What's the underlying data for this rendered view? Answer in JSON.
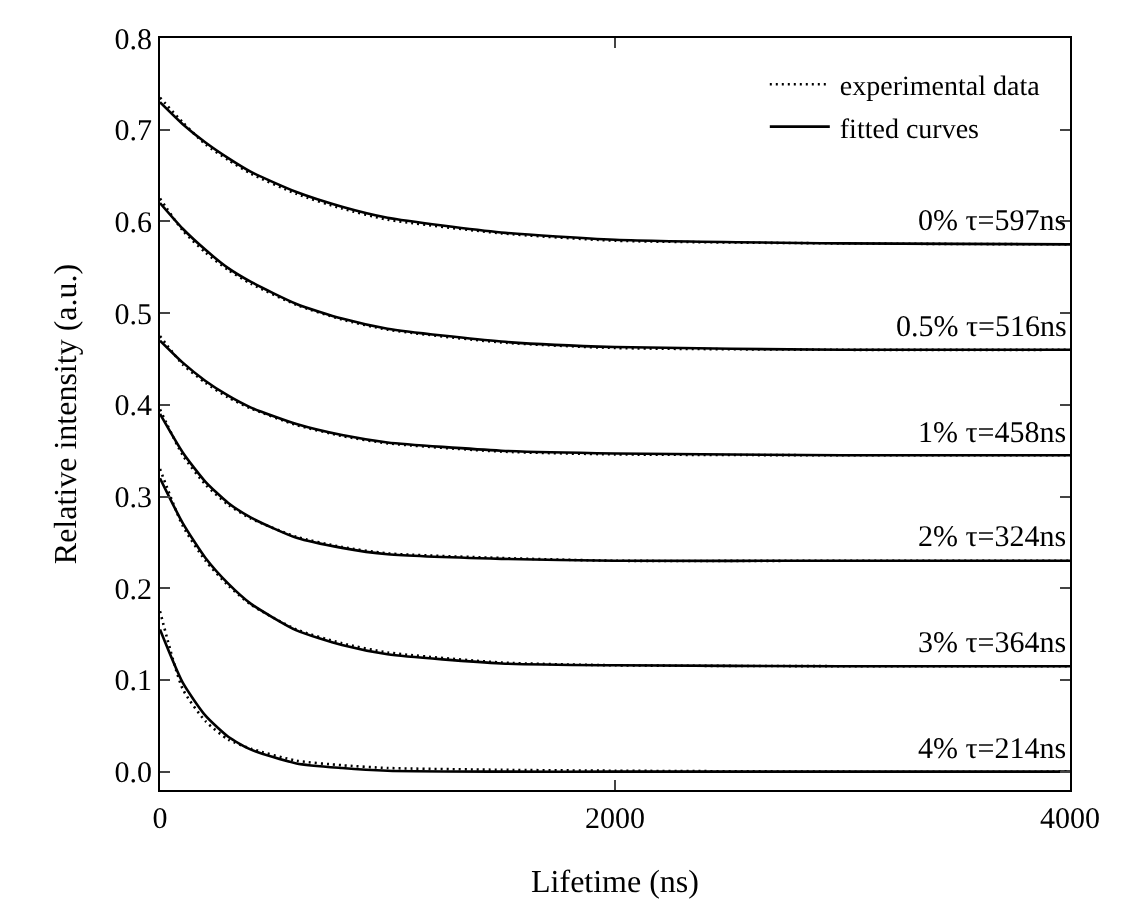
{
  "chart_data": {
    "type": "line",
    "xlabel": "Lifetime (ns)",
    "ylabel": "Relative intensity (a.u.)",
    "x": [
      0,
      100,
      200,
      300,
      400,
      600,
      800,
      1000,
      1500,
      2000,
      3000,
      4000
    ],
    "xlim": [
      0,
      4000
    ],
    "xticks": [
      0,
      2000,
      4000
    ],
    "ylim": [
      -0.02,
      0.8
    ],
    "yticks": [
      {
        "value": 0,
        "label": "0.0"
      },
      0.1,
      0.2,
      0.3,
      0.4,
      0.5,
      0.6,
      0.7,
      0.8
    ],
    "grid": false,
    "legend": "top right",
    "marker": "none",
    "series": [
      {
        "name": "experimental data",
        "color": "#000000",
        "line_style": "dotted",
        "values": [
          0.735,
          0.708,
          0.684,
          0.667,
          0.652,
          0.63,
          0.614,
          0.602,
          0.587,
          0.579,
          0.576,
          0.575
        ]
      },
      {
        "name": "fitted curves",
        "color": "#000000",
        "line_style": "solid",
        "values": [
          0.73,
          0.706,
          0.686,
          0.669,
          0.654,
          0.632,
          0.616,
          0.604,
          0.588,
          0.58,
          0.576,
          0.575
        ]
      },
      {
        "color": "#000000",
        "line_style": "dotted",
        "values": [
          0.625,
          0.59,
          0.566,
          0.547,
          0.532,
          0.509,
          0.493,
          0.482,
          0.468,
          0.462,
          0.46,
          0.46
        ]
      },
      {
        "color": "#000000",
        "line_style": "solid",
        "values": [
          0.62,
          0.592,
          0.569,
          0.549,
          0.534,
          0.51,
          0.494,
          0.483,
          0.469,
          0.463,
          0.46,
          0.46
        ]
      },
      {
        "color": "#000000",
        "line_style": "dotted",
        "values": [
          0.475,
          0.444,
          0.424,
          0.408,
          0.396,
          0.378,
          0.366,
          0.358,
          0.349,
          0.346,
          0.345,
          0.345
        ]
      },
      {
        "color": "#000000",
        "line_style": "solid",
        "values": [
          0.47,
          0.446,
          0.426,
          0.41,
          0.397,
          0.379,
          0.367,
          0.359,
          0.35,
          0.347,
          0.345,
          0.345
        ]
      },
      {
        "color": "#000000",
        "line_style": "dotted",
        "values": [
          0.395,
          0.345,
          0.313,
          0.291,
          0.276,
          0.256,
          0.245,
          0.238,
          0.233,
          0.23,
          0.23,
          0.23
        ]
      },
      {
        "color": "#000000",
        "line_style": "solid",
        "values": [
          0.39,
          0.348,
          0.316,
          0.293,
          0.277,
          0.255,
          0.244,
          0.237,
          0.232,
          0.23,
          0.23,
          0.23
        ]
      },
      {
        "color": "#000000",
        "line_style": "dotted",
        "values": [
          0.33,
          0.268,
          0.23,
          0.203,
          0.182,
          0.155,
          0.14,
          0.13,
          0.119,
          0.116,
          0.115,
          0.115
        ]
      },
      {
        "color": "#000000",
        "line_style": "solid",
        "values": [
          0.32,
          0.271,
          0.233,
          0.205,
          0.183,
          0.154,
          0.138,
          0.128,
          0.118,
          0.116,
          0.115,
          0.115
        ]
      },
      {
        "color": "#000000",
        "line_style": "dotted",
        "values": [
          0.175,
          0.09,
          0.055,
          0.035,
          0.025,
          0.012,
          0.007,
          0.004,
          0.002,
          0.001,
          0,
          0
        ]
      },
      {
        "color": "#000000",
        "line_style": "solid",
        "values": [
          0.155,
          0.097,
          0.061,
          0.038,
          0.024,
          0.009,
          0.004,
          0.001,
          0,
          0,
          0,
          0
        ]
      }
    ],
    "annotations": [
      {
        "text": "0% τ=597ns",
        "y": 0.575
      },
      {
        "text": "0.5% τ=516ns",
        "y": 0.46
      },
      {
        "text": "1% τ=458ns",
        "y": 0.345
      },
      {
        "text": "2% τ=324ns",
        "y": 0.23
      },
      {
        "text": "3% τ=364ns",
        "y": 0.115
      },
      {
        "text": "4% τ=214ns",
        "y": 0
      }
    ]
  }
}
